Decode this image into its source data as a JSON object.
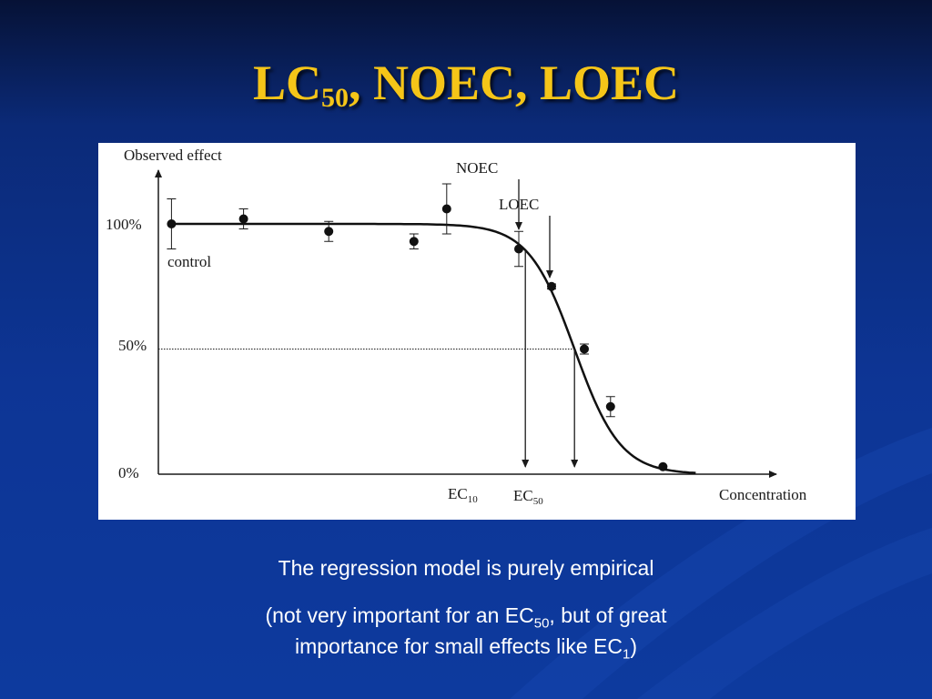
{
  "title": {
    "main": "LC",
    "sub": "50",
    "rest": ", NOEC, LOEC"
  },
  "caption": {
    "line1": "The regression model is purely empirical",
    "line2_a": "(not very important for an EC",
    "line2_sub": "50",
    "line2_b": ", but of great",
    "line3_a": "importance for small effects like EC",
    "line3_sub": "1",
    "line3_b": ")"
  },
  "colors": {
    "title": "#f5c518",
    "background": "#0d3595",
    "panel": "#ffffff",
    "ink": "#1a1a1a"
  },
  "chart_data": {
    "type": "scatter",
    "ylabel": "Observed effect",
    "xlabel": "Concentration",
    "yticks": [
      "100%",
      "50%",
      "0%"
    ],
    "ylim": [
      0,
      100
    ],
    "annotations": {
      "control": "control",
      "noec": "NOEC",
      "loec": "LOEC",
      "ec10": "EC",
      "ec10_sub": "10",
      "ec50": "EC",
      "ec50_sub": "50"
    },
    "points": [
      {
        "x": 0.02,
        "y": 100,
        "err": 10
      },
      {
        "x": 0.13,
        "y": 102,
        "err": 4
      },
      {
        "x": 0.26,
        "y": 97,
        "err": 4
      },
      {
        "x": 0.39,
        "y": 93,
        "err": 3
      },
      {
        "x": 0.44,
        "y": 106,
        "err": 10
      },
      {
        "x": 0.55,
        "y": 90,
        "err": 7
      },
      {
        "x": 0.6,
        "y": 75,
        "err": 1
      },
      {
        "x": 0.65,
        "y": 50,
        "err": 2
      },
      {
        "x": 0.69,
        "y": 27,
        "err": 4
      },
      {
        "x": 0.77,
        "y": 3,
        "err": 0
      }
    ],
    "curve": {
      "plateau": 100,
      "ec50_x": 0.635,
      "slope": 0.035
    },
    "ec10_x": 0.56,
    "ec50_x": 0.635,
    "noec_x": 0.55,
    "loec_x": 0.6
  }
}
